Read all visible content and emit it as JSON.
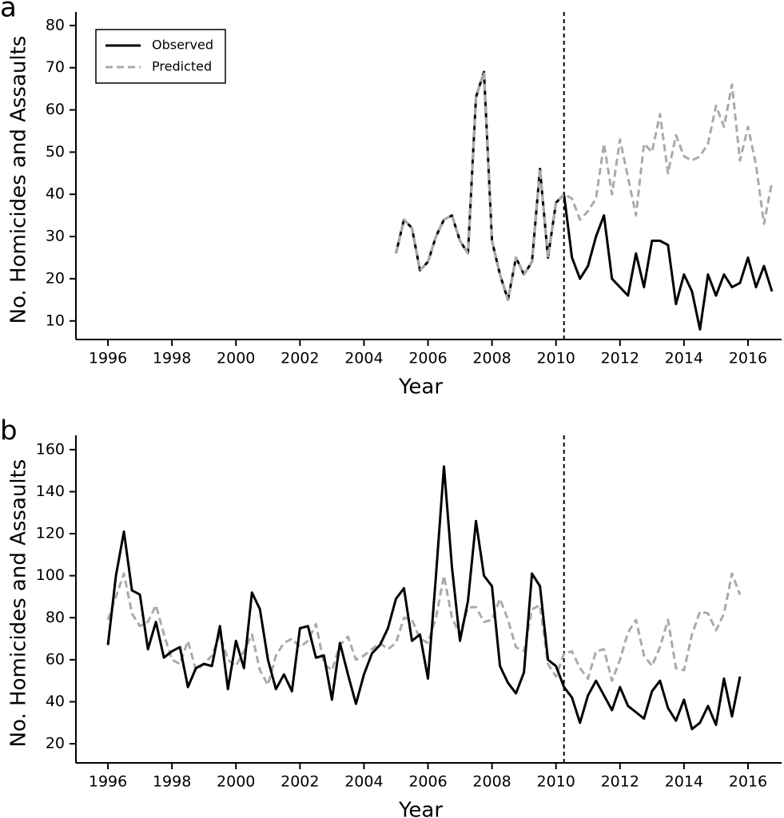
{
  "chart_data": [
    {
      "type": "line",
      "panel_label": "a",
      "ylabel": "No. Homicides and Assaults",
      "xlabel": "Year",
      "legend": "upper left",
      "vline": 2010.25,
      "xlim": [
        1995,
        2017.05
      ],
      "ylim": [
        5.6,
        83.2
      ],
      "xticks": [
        1996,
        1998,
        2000,
        2002,
        2004,
        2006,
        2008,
        2010,
        2012,
        2014,
        2016
      ],
      "yticks": [
        10,
        20,
        30,
        40,
        50,
        60,
        70,
        80
      ],
      "x": [
        2005,
        2005.25,
        2005.5,
        2005.75,
        2006,
        2006.25,
        2006.5,
        2006.75,
        2007,
        2007.25,
        2007.5,
        2007.75,
        2008,
        2008.25,
        2008.5,
        2008.75,
        2009,
        2009.25,
        2009.5,
        2009.75,
        2010,
        2010.25,
        2010.5,
        2010.75,
        2011,
        2011.25,
        2011.5,
        2011.75,
        2012,
        2012.25,
        2012.5,
        2012.75,
        2013,
        2013.25,
        2013.5,
        2013.75,
        2014,
        2014.25,
        2014.5,
        2014.75,
        2015,
        2015.25,
        2015.5,
        2015.75,
        2016,
        2016.25,
        2016.5,
        2016.75
      ],
      "series": [
        {
          "name": "Observed",
          "color": "#000000",
          "dashed": false,
          "values": [
            26,
            34,
            32,
            22,
            24,
            30,
            34,
            35,
            29,
            26,
            63,
            69,
            29,
            21,
            15,
            25,
            21,
            24,
            46,
            25,
            38,
            40,
            25,
            20,
            23,
            30,
            35,
            20,
            18,
            16,
            26,
            18,
            29,
            29,
            28,
            14,
            21,
            17,
            8,
            21,
            16,
            21,
            18,
            19,
            25,
            18,
            23,
            17
          ]
        },
        {
          "name": "Predicted",
          "color": "#aaaaaa",
          "dashed": true,
          "values": [
            26,
            34,
            32,
            22,
            24,
            30,
            34,
            35,
            29,
            26,
            63,
            69,
            29,
            21,
            15,
            25,
            21,
            24,
            46,
            25,
            38,
            40,
            39,
            34,
            36,
            39,
            52,
            40,
            53,
            44,
            35,
            52,
            50,
            59,
            45,
            54,
            49,
            48,
            49,
            52,
            61,
            56,
            66,
            48,
            56,
            47,
            33,
            43
          ]
        }
      ]
    },
    {
      "type": "line",
      "panel_label": "b",
      "ylabel": "No. Homicides and Assaults",
      "xlabel": "Year",
      "vline": 2010.25,
      "xlim": [
        1995,
        2017.05
      ],
      "ylim": [
        10.9,
        166.8
      ],
      "xticks": [
        1996,
        1998,
        2000,
        2002,
        2004,
        2006,
        2008,
        2010,
        2012,
        2014,
        2016
      ],
      "yticks": [
        20,
        40,
        60,
        80,
        100,
        120,
        140,
        160
      ],
      "x": [
        1996,
        1996.25,
        1996.5,
        1996.75,
        1997,
        1997.25,
        1997.5,
        1997.75,
        1998,
        1998.25,
        1998.5,
        1998.75,
        1999,
        1999.25,
        1999.5,
        1999.75,
        2000,
        2000.25,
        2000.5,
        2000.75,
        2001,
        2001.25,
        2001.5,
        2001.75,
        2002,
        2002.25,
        2002.5,
        2002.75,
        2003,
        2003.25,
        2003.5,
        2003.75,
        2004,
        2004.25,
        2004.5,
        2004.75,
        2005,
        2005.25,
        2005.5,
        2005.75,
        2006,
        2006.25,
        2006.5,
        2006.75,
        2007,
        2007.25,
        2007.5,
        2007.75,
        2008,
        2008.25,
        2008.5,
        2008.75,
        2009,
        2009.25,
        2009.5,
        2009.75,
        2010,
        2010.25,
        2010.5,
        2010.75,
        2011,
        2011.25,
        2011.5,
        2011.75,
        2012,
        2012.25,
        2012.5,
        2012.75,
        2013,
        2013.25,
        2013.5,
        2013.75,
        2014,
        2014.25,
        2014.5,
        2014.75,
        2015,
        2015.25,
        2015.5,
        2015.75
      ],
      "series": [
        {
          "color": "#aaaaaa",
          "dashed": true,
          "values": [
            79,
            90,
            101,
            82,
            76,
            78,
            86,
            72,
            60,
            58,
            69,
            55,
            58,
            62,
            72,
            60,
            57,
            64,
            72,
            55,
            48,
            62,
            68,
            70,
            66,
            69,
            77,
            58,
            55,
            67,
            71,
            60,
            62,
            65,
            68,
            65,
            68,
            80,
            79,
            70,
            68,
            80,
            100,
            80,
            72,
            85,
            85,
            78,
            79,
            89,
            79,
            66,
            64,
            84,
            86,
            58,
            52,
            63,
            64,
            56,
            51,
            64,
            65,
            50,
            60,
            73,
            79,
            62,
            57,
            66,
            79,
            56,
            55,
            72,
            83,
            82,
            74,
            82,
            101,
            91
          ]
        },
        {
          "color": "#000000",
          "dashed": false,
          "values": [
            67,
            100,
            121,
            93,
            91,
            65,
            78,
            61,
            64,
            66,
            47,
            56,
            58,
            57,
            76,
            46,
            69,
            56,
            92,
            84,
            60,
            46,
            53,
            45,
            75,
            76,
            61,
            62,
            41,
            68,
            53,
            39,
            53,
            63,
            67,
            75,
            89,
            94,
            69,
            72,
            51,
            100,
            152,
            104,
            69,
            88,
            126,
            100,
            95,
            57,
            49,
            44,
            54,
            101,
            95,
            60,
            57,
            47,
            42,
            30,
            43,
            50,
            43,
            36,
            47,
            38,
            35,
            32,
            45,
            50,
            37,
            31,
            41,
            27,
            30,
            38,
            29,
            51,
            33,
            52
          ]
        }
      ]
    }
  ]
}
